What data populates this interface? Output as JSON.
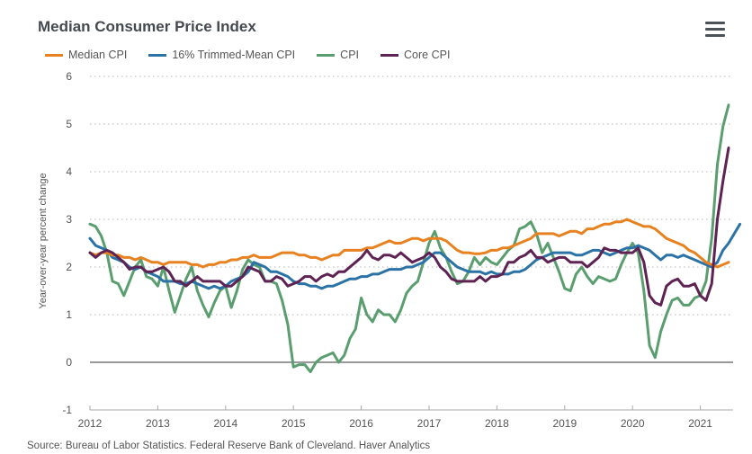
{
  "header": {
    "title": "Median Consumer Price Index",
    "menu_icon": "hamburger-menu-icon"
  },
  "source": "Source: Bureau of Labor Statistics. Federal Reserve Bank of Cleveland. Haver Analytics",
  "chart_data": {
    "type": "line",
    "title": "Median Consumer Price Index",
    "xlabel": "",
    "ylabel": "Year-over-year percent change",
    "ylim": [
      -1,
      6
    ],
    "yticks": [
      6,
      5,
      4,
      3,
      2,
      1,
      0,
      -1
    ],
    "ytick_labels": [
      "6",
      "5",
      "4",
      "3",
      "2",
      "1",
      "0",
      "-1"
    ],
    "xticks": [
      "2012",
      "2013",
      "2014",
      "2015",
      "2016",
      "2017",
      "2018",
      "2019",
      "2020",
      "2021"
    ],
    "x_start": "2012-01",
    "x_frequency": "monthly",
    "x_count": 114,
    "grid": "horizontal-dotted",
    "zero_line": true,
    "legend_position": "top-left",
    "series": [
      {
        "name": "Median CPI",
        "color": "#e8811f",
        "values": [
          2.3,
          2.25,
          2.3,
          2.3,
          2.25,
          2.25,
          2.2,
          2.2,
          2.15,
          2.2,
          2.15,
          2.1,
          2.1,
          2.05,
          2.1,
          2.1,
          2.1,
          2.1,
          2.05,
          2.05,
          2.0,
          2.05,
          2.05,
          2.1,
          2.1,
          2.15,
          2.15,
          2.2,
          2.2,
          2.25,
          2.2,
          2.2,
          2.2,
          2.25,
          2.3,
          2.3,
          2.3,
          2.25,
          2.25,
          2.2,
          2.2,
          2.15,
          2.2,
          2.25,
          2.25,
          2.35,
          2.35,
          2.35,
          2.35,
          2.4,
          2.4,
          2.45,
          2.5,
          2.55,
          2.5,
          2.5,
          2.55,
          2.6,
          2.6,
          2.55,
          2.6,
          2.6,
          2.6,
          2.55,
          2.45,
          2.35,
          2.3,
          2.3,
          2.28,
          2.28,
          2.3,
          2.35,
          2.35,
          2.4,
          2.4,
          2.45,
          2.5,
          2.55,
          2.6,
          2.7,
          2.7,
          2.7,
          2.7,
          2.65,
          2.7,
          2.75,
          2.75,
          2.7,
          2.8,
          2.8,
          2.85,
          2.9,
          2.9,
          2.95,
          2.95,
          3.0,
          2.95,
          2.9,
          2.85,
          2.85,
          2.8,
          2.7,
          2.6,
          2.55,
          2.5,
          2.45,
          2.35,
          2.3,
          2.2,
          2.1,
          2.05,
          2.0,
          2.05,
          2.1
        ]
      },
      {
        "name": "16% Trimmed-Mean CPI",
        "color": "#2b73a6",
        "values": [
          2.6,
          2.45,
          2.4,
          2.35,
          2.2,
          2.15,
          2.1,
          2.0,
          1.95,
          2.0,
          1.9,
          1.85,
          1.8,
          1.7,
          1.7,
          1.7,
          1.65,
          1.65,
          1.7,
          1.65,
          1.6,
          1.55,
          1.6,
          1.55,
          1.6,
          1.7,
          1.75,
          1.8,
          1.9,
          2.1,
          2.05,
          2.0,
          1.9,
          1.9,
          1.85,
          1.8,
          1.7,
          1.65,
          1.65,
          1.6,
          1.6,
          1.55,
          1.6,
          1.6,
          1.65,
          1.7,
          1.75,
          1.75,
          1.8,
          1.8,
          1.85,
          1.85,
          1.9,
          1.95,
          1.95,
          1.95,
          2.0,
          2.0,
          2.05,
          2.1,
          2.2,
          2.3,
          2.3,
          2.2,
          2.1,
          2.0,
          1.95,
          1.9,
          1.9,
          1.9,
          1.85,
          1.9,
          1.85,
          1.85,
          1.85,
          1.9,
          1.9,
          1.95,
          2.05,
          2.15,
          2.2,
          2.25,
          2.3,
          2.3,
          2.3,
          2.3,
          2.25,
          2.25,
          2.3,
          2.35,
          2.35,
          2.3,
          2.25,
          2.3,
          2.35,
          2.4,
          2.4,
          2.45,
          2.4,
          2.35,
          2.25,
          2.15,
          2.25,
          2.25,
          2.2,
          2.25,
          2.2,
          2.15,
          2.1,
          2.05,
          2.0,
          2.1,
          2.35,
          2.5,
          2.7,
          2.9
        ]
      },
      {
        "name": "CPI",
        "color": "#5a9e6f",
        "values": [
          2.9,
          2.85,
          2.65,
          2.3,
          1.7,
          1.65,
          1.4,
          1.7,
          2.0,
          2.15,
          1.8,
          1.75,
          1.6,
          2.0,
          1.5,
          1.05,
          1.4,
          1.75,
          2.0,
          1.5,
          1.2,
          0.95,
          1.25,
          1.5,
          1.6,
          1.15,
          1.5,
          1.95,
          2.15,
          2.05,
          2.0,
          1.7,
          1.7,
          1.65,
          1.3,
          0.8,
          -0.1,
          -0.05,
          -0.05,
          -0.2,
          0.0,
          0.1,
          0.15,
          0.2,
          0.0,
          0.15,
          0.5,
          0.7,
          1.35,
          1.0,
          0.85,
          1.1,
          1.0,
          1.0,
          0.85,
          1.1,
          1.45,
          1.6,
          1.7,
          2.1,
          2.5,
          2.75,
          2.4,
          2.2,
          1.9,
          1.65,
          1.7,
          1.9,
          2.2,
          2.05,
          2.2,
          2.1,
          2.05,
          2.2,
          2.35,
          2.45,
          2.8,
          2.85,
          2.95,
          2.7,
          2.3,
          2.5,
          2.2,
          1.9,
          1.55,
          1.5,
          1.85,
          2.0,
          1.8,
          1.65,
          1.8,
          1.75,
          1.7,
          1.75,
          2.05,
          2.3,
          2.5,
          2.3,
          1.5,
          0.35,
          0.1,
          0.65,
          1.0,
          1.3,
          1.35,
          1.2,
          1.2,
          1.35,
          1.4,
          1.7,
          2.6,
          4.15,
          4.95,
          5.4
        ]
      },
      {
        "name": "Core CPI",
        "color": "#5e2253",
        "values": [
          2.3,
          2.2,
          2.3,
          2.35,
          2.3,
          2.2,
          2.1,
          1.95,
          2.0,
          2.0,
          1.9,
          1.9,
          1.95,
          2.0,
          1.9,
          1.7,
          1.7,
          1.6,
          1.7,
          1.8,
          1.7,
          1.7,
          1.7,
          1.7,
          1.6,
          1.6,
          1.7,
          1.8,
          2.0,
          1.95,
          1.9,
          1.7,
          1.7,
          1.8,
          1.75,
          1.6,
          1.65,
          1.7,
          1.8,
          1.8,
          1.7,
          1.8,
          1.85,
          1.8,
          1.9,
          1.9,
          2.0,
          2.1,
          2.2,
          2.35,
          2.2,
          2.15,
          2.25,
          2.25,
          2.2,
          2.3,
          2.2,
          2.1,
          2.15,
          2.2,
          2.3,
          2.2,
          2.0,
          1.9,
          1.75,
          1.7,
          1.7,
          1.7,
          1.7,
          1.8,
          1.7,
          1.8,
          1.8,
          1.85,
          2.1,
          2.1,
          2.2,
          2.25,
          2.35,
          2.2,
          2.2,
          2.1,
          2.15,
          2.2,
          2.2,
          2.1,
          2.1,
          2.1,
          2.0,
          2.1,
          2.2,
          2.4,
          2.35,
          2.35,
          2.3,
          2.3,
          2.3,
          2.4,
          2.1,
          1.4,
          1.25,
          1.2,
          1.6,
          1.7,
          1.75,
          1.6,
          1.6,
          1.65,
          1.4,
          1.3,
          1.65,
          3.0,
          3.8,
          4.5
        ]
      }
    ]
  }
}
